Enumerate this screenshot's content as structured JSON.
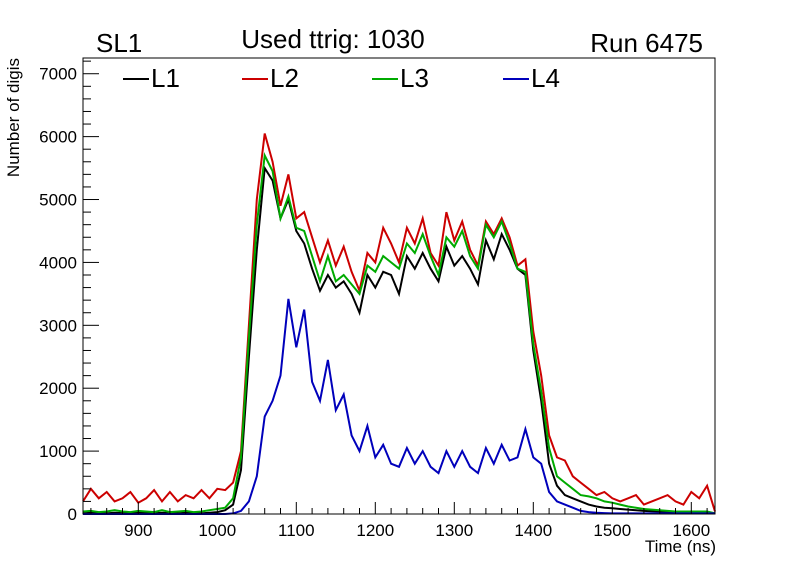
{
  "header": {
    "left": "SL1",
    "center": "Used ttrig: 1030",
    "right": "Run 6475"
  },
  "chart_data": {
    "type": "line",
    "title": "Used ttrig: 1030",
    "xlabel": "Time (ns)",
    "ylabel": "Number of digis",
    "xlim": [
      830,
      1630
    ],
    "ylim": [
      0,
      7250
    ],
    "xticks": [
      900,
      1000,
      1100,
      1200,
      1300,
      1400,
      1500,
      1600
    ],
    "yticks": [
      0,
      1000,
      2000,
      3000,
      4000,
      5000,
      6000,
      7000
    ],
    "legend_position": "top",
    "grid": false,
    "x": [
      830,
      840,
      850,
      860,
      870,
      880,
      890,
      900,
      910,
      920,
      930,
      940,
      950,
      960,
      970,
      980,
      990,
      1000,
      1010,
      1020,
      1030,
      1040,
      1050,
      1060,
      1070,
      1080,
      1090,
      1100,
      1110,
      1120,
      1130,
      1140,
      1150,
      1160,
      1170,
      1180,
      1190,
      1200,
      1210,
      1220,
      1230,
      1240,
      1250,
      1260,
      1270,
      1280,
      1290,
      1300,
      1310,
      1320,
      1330,
      1340,
      1350,
      1360,
      1370,
      1380,
      1390,
      1400,
      1410,
      1420,
      1430,
      1440,
      1450,
      1460,
      1470,
      1480,
      1490,
      1500,
      1510,
      1520,
      1530,
      1540,
      1550,
      1560,
      1570,
      1580,
      1590,
      1600,
      1610,
      1620,
      1630
    ],
    "series": [
      {
        "name": "L1",
        "color": "#000000",
        "values": [
          10,
          20,
          15,
          10,
          20,
          15,
          10,
          20,
          15,
          10,
          20,
          15,
          10,
          20,
          15,
          10,
          20,
          30,
          60,
          150,
          700,
          2500,
          4200,
          5500,
          5300,
          4700,
          5000,
          4500,
          4300,
          3900,
          3550,
          3800,
          3600,
          3700,
          3500,
          3200,
          3800,
          3600,
          3850,
          3800,
          3500,
          4100,
          3900,
          4150,
          3900,
          3700,
          4250,
          3950,
          4100,
          3900,
          3650,
          4350,
          4050,
          4450,
          4200,
          3900,
          3800,
          2600,
          1800,
          800,
          450,
          300,
          250,
          200,
          150,
          120,
          100,
          90,
          80,
          70,
          60,
          50,
          45,
          40,
          35,
          30,
          30,
          30,
          30,
          30,
          10
        ]
      },
      {
        "name": "L2",
        "color": "#cc0000",
        "values": [
          200,
          400,
          250,
          350,
          200,
          250,
          350,
          180,
          250,
          380,
          200,
          350,
          200,
          300,
          250,
          380,
          250,
          400,
          380,
          500,
          1000,
          3000,
          5000,
          6050,
          5600,
          4900,
          5400,
          4700,
          4800,
          4400,
          4000,
          4350,
          3950,
          4250,
          3850,
          3550,
          4150,
          4000,
          4550,
          4300,
          4000,
          4550,
          4300,
          4700,
          4150,
          3950,
          4800,
          4350,
          4650,
          4200,
          3950,
          4650,
          4450,
          4700,
          4400,
          3950,
          4050,
          2900,
          2200,
          1250,
          900,
          850,
          600,
          500,
          400,
          300,
          350,
          250,
          200,
          250,
          300,
          150,
          200,
          250,
          300,
          200,
          150,
          350,
          250,
          450,
          40
        ]
      },
      {
        "name": "L3",
        "color": "#00aa00",
        "values": [
          40,
          50,
          30,
          40,
          60,
          40,
          30,
          50,
          40,
          30,
          60,
          30,
          40,
          50,
          30,
          40,
          60,
          80,
          100,
          250,
          900,
          2800,
          4600,
          5700,
          5450,
          4700,
          5050,
          4550,
          4500,
          4100,
          3700,
          4100,
          3700,
          3800,
          3650,
          3500,
          3950,
          3850,
          4100,
          4000,
          3900,
          4300,
          4150,
          4450,
          4100,
          3800,
          4400,
          4250,
          4500,
          4100,
          3900,
          4600,
          4400,
          4650,
          4300,
          3900,
          3850,
          2700,
          1950,
          1050,
          600,
          500,
          400,
          300,
          280,
          250,
          200,
          180,
          150,
          120,
          100,
          80,
          70,
          60,
          50,
          40,
          40,
          40,
          40,
          40,
          10
        ]
      },
      {
        "name": "L4",
        "color": "#0000bb",
        "values": [
          0,
          0,
          0,
          0,
          0,
          0,
          0,
          0,
          0,
          0,
          0,
          0,
          0,
          0,
          0,
          0,
          0,
          0,
          0,
          10,
          50,
          200,
          600,
          1550,
          1800,
          2200,
          3420,
          2650,
          3250,
          2100,
          1800,
          2450,
          1650,
          1900,
          1250,
          1000,
          1400,
          900,
          1100,
          800,
          750,
          1050,
          800,
          1000,
          750,
          650,
          1000,
          750,
          1000,
          750,
          650,
          1050,
          800,
          1100,
          850,
          900,
          1350,
          900,
          800,
          350,
          200,
          150,
          100,
          50,
          30,
          20,
          15,
          10,
          10,
          10,
          10,
          10,
          10,
          10,
          10,
          10,
          10,
          10,
          10,
          10,
          10
        ]
      }
    ]
  }
}
